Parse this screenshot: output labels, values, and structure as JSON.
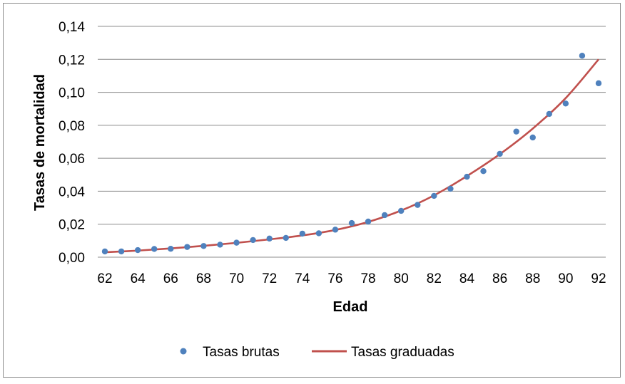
{
  "chart_data": {
    "type": "scatter",
    "title": "",
    "xlabel": "Edad",
    "ylabel": "Tasas de mortalidad",
    "xlim": [
      62,
      92
    ],
    "ylim": [
      0,
      0.14
    ],
    "x_ticks": [
      "62",
      "64",
      "66",
      "68",
      "70",
      "72",
      "74",
      "76",
      "78",
      "80",
      "82",
      "84",
      "86",
      "88",
      "90",
      "92"
    ],
    "y_ticks": [
      "0,00",
      "0,02",
      "0,04",
      "0,06",
      "0,08",
      "0,10",
      "0,12",
      "0,14"
    ],
    "grid": "horizontal",
    "legend_position": "bottom",
    "series": [
      {
        "name": "Tasas brutas",
        "kind": "markers",
        "color": "#4f81bd",
        "x": [
          62,
          63,
          64,
          65,
          66,
          67,
          68,
          69,
          70,
          71,
          72,
          73,
          74,
          75,
          76,
          77,
          78,
          79,
          80,
          81,
          82,
          83,
          84,
          85,
          86,
          87,
          88,
          89,
          90,
          91,
          92
        ],
        "y": [
          0.0035,
          0.0035,
          0.0043,
          0.005,
          0.0051,
          0.0062,
          0.0068,
          0.0076,
          0.0088,
          0.0104,
          0.0113,
          0.0117,
          0.0143,
          0.0145,
          0.0167,
          0.0207,
          0.0216,
          0.0255,
          0.0281,
          0.0317,
          0.0372,
          0.0415,
          0.0488,
          0.0522,
          0.0627,
          0.0762,
          0.0726,
          0.0869,
          0.0932,
          0.1222,
          0.1055
        ]
      },
      {
        "name": "Tasas graduadas",
        "kind": "line",
        "color": "#c0504d",
        "x": [
          62,
          64,
          66,
          68,
          70,
          72,
          74,
          76,
          78,
          80,
          82,
          84,
          86,
          88,
          90,
          92
        ],
        "y": [
          0.003,
          0.004,
          0.0053,
          0.0069,
          0.0087,
          0.0108,
          0.0132,
          0.0165,
          0.0214,
          0.0283,
          0.0375,
          0.0492,
          0.0625,
          0.078,
          0.0965,
          0.12
        ]
      }
    ]
  }
}
